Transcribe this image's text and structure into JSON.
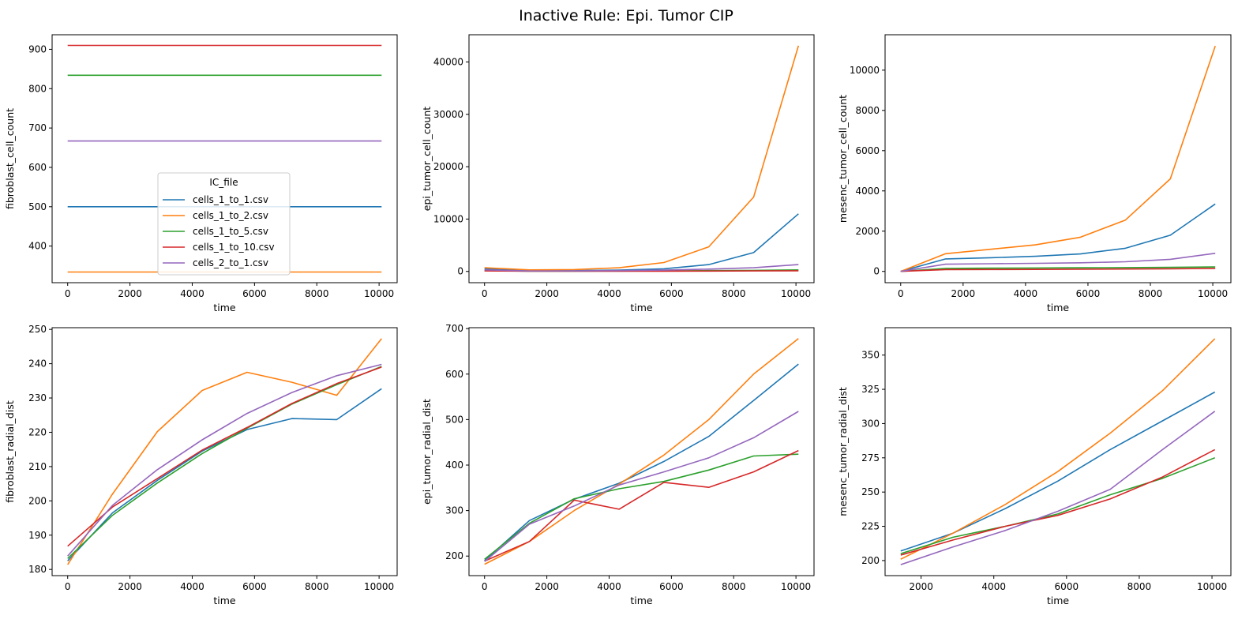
{
  "figure": {
    "title": "Inactive Rule: Epi. Tumor CIP"
  },
  "colors": {
    "cells_1_to_1.csv": "#1f77b4",
    "cells_1_to_2.csv": "#ff7f0e",
    "cells_1_to_5.csv": "#2ca02c",
    "cells_1_to_10.csv": "#d62728",
    "cells_2_to_1.csv": "#9467bd"
  },
  "legend": {
    "title": "IC_file",
    "placement": "lower center (first panel)",
    "entries": [
      "cells_1_to_1.csv",
      "cells_1_to_2.csv",
      "cells_1_to_5.csv",
      "cells_1_to_10.csv",
      "cells_2_to_1.csv"
    ]
  },
  "chart_data": [
    {
      "type": "line",
      "xlabel": "time",
      "ylabel": "fibroblast_cell_count",
      "xlim": [
        -500,
        10580
      ],
      "ylim": [
        307,
        937
      ],
      "xticks": [
        0,
        2000,
        4000,
        6000,
        8000,
        10000
      ],
      "yticks": [
        400,
        500,
        600,
        700,
        800,
        900
      ],
      "series": [
        {
          "name": "cells_1_to_1.csv",
          "x": [
            0,
            1440,
            2880,
            4320,
            5760,
            7200,
            8640,
            10080
          ],
          "y": [
            500,
            500,
            500,
            500,
            500,
            500,
            500,
            500
          ]
        },
        {
          "name": "cells_1_to_2.csv",
          "x": [
            0,
            1440,
            2880,
            4320,
            5760,
            7200,
            8640,
            10080
          ],
          "y": [
            334,
            334,
            334,
            334,
            334,
            334,
            334,
            334
          ]
        },
        {
          "name": "cells_1_to_5.csv",
          "x": [
            0,
            1440,
            2880,
            4320,
            5760,
            7200,
            8640,
            10080
          ],
          "y": [
            834,
            834,
            834,
            834,
            834,
            834,
            834,
            834
          ]
        },
        {
          "name": "cells_1_to_10.csv",
          "x": [
            0,
            1440,
            2880,
            4320,
            5760,
            7200,
            8640,
            10080
          ],
          "y": [
            910,
            910,
            910,
            910,
            910,
            910,
            910,
            910
          ]
        },
        {
          "name": "cells_2_to_1.csv",
          "x": [
            0,
            1440,
            2880,
            4320,
            5760,
            7200,
            8640,
            10080
          ],
          "y": [
            667,
            667,
            667,
            667,
            667,
            667,
            667,
            667
          ]
        }
      ]
    },
    {
      "type": "line",
      "xlabel": "time",
      "ylabel": "epi_tumor_cell_count",
      "xlim": [
        -500,
        10580
      ],
      "ylim": [
        -2150,
        45200
      ],
      "xticks": [
        0,
        2000,
        4000,
        6000,
        8000,
        10000
      ],
      "yticks": [
        0,
        10000,
        20000,
        30000,
        40000
      ],
      "series": [
        {
          "name": "cells_1_to_1.csv",
          "x": [
            0,
            1440,
            2880,
            4320,
            5760,
            7200,
            8640,
            10080
          ],
          "y": [
            500,
            100,
            150,
            250,
            500,
            1300,
            3600,
            11000
          ]
        },
        {
          "name": "cells_1_to_2.csv",
          "x": [
            0,
            1440,
            2880,
            4320,
            5760,
            7200,
            8640,
            10080
          ],
          "y": [
            700,
            300,
            350,
            700,
            1700,
            4700,
            14200,
            43100
          ]
        },
        {
          "name": "cells_1_to_5.csv",
          "x": [
            0,
            1440,
            2880,
            4320,
            5760,
            7200,
            8640,
            10080
          ],
          "y": [
            150,
            50,
            50,
            70,
            100,
            150,
            200,
            300
          ]
        },
        {
          "name": "cells_1_to_10.csv",
          "x": [
            0,
            1440,
            2880,
            4320,
            5760,
            7200,
            8640,
            10080
          ],
          "y": [
            100,
            30,
            30,
            40,
            50,
            70,
            90,
            130
          ]
        },
        {
          "name": "cells_2_to_1.csv",
          "x": [
            0,
            1440,
            2880,
            4320,
            5760,
            7200,
            8640,
            10080
          ],
          "y": [
            300,
            80,
            100,
            150,
            250,
            450,
            700,
            1300
          ]
        }
      ]
    },
    {
      "type": "line",
      "xlabel": "time",
      "ylabel": "mesenc_tumor_cell_count",
      "xlim": [
        -500,
        10580
      ],
      "ylim": [
        -560,
        11760
      ],
      "xticks": [
        0,
        2000,
        4000,
        6000,
        8000,
        10000
      ],
      "yticks": [
        0,
        2000,
        4000,
        6000,
        8000,
        10000
      ],
      "series": [
        {
          "name": "cells_1_to_1.csv",
          "x": [
            0,
            1440,
            2880,
            4320,
            5760,
            7200,
            8640,
            10080
          ],
          "y": [
            0,
            620,
            680,
            750,
            870,
            1150,
            1800,
            3350
          ]
        },
        {
          "name": "cells_1_to_2.csv",
          "x": [
            0,
            1440,
            2880,
            4320,
            5760,
            7200,
            8640,
            10080
          ],
          "y": [
            0,
            880,
            1100,
            1320,
            1700,
            2550,
            4600,
            11200
          ]
        },
        {
          "name": "cells_1_to_5.csv",
          "x": [
            0,
            1440,
            2880,
            4320,
            5760,
            7200,
            8640,
            10080
          ],
          "y": [
            0,
            150,
            160,
            170,
            180,
            190,
            200,
            220
          ]
        },
        {
          "name": "cells_1_to_10.csv",
          "x": [
            0,
            1440,
            2880,
            4320,
            5760,
            7200,
            8640,
            10080
          ],
          "y": [
            0,
            90,
            95,
            100,
            110,
            120,
            130,
            150
          ]
        },
        {
          "name": "cells_2_to_1.csv",
          "x": [
            0,
            1440,
            2880,
            4320,
            5760,
            7200,
            8640,
            10080
          ],
          "y": [
            0,
            360,
            380,
            400,
            430,
            480,
            600,
            900
          ]
        }
      ]
    },
    {
      "type": "line",
      "xlabel": "time",
      "ylabel": "fibroblast_radial_dist",
      "xlim": [
        -500,
        10580
      ],
      "ylim": [
        178.2,
        250.5
      ],
      "xticks": [
        0,
        2000,
        4000,
        6000,
        8000,
        10000
      ],
      "yticks": [
        180,
        190,
        200,
        210,
        220,
        230,
        240,
        250
      ],
      "series": [
        {
          "name": "cells_1_to_1.csv",
          "x": [
            0,
            1440,
            2880,
            4320,
            5760,
            7200,
            8640,
            10080
          ],
          "y": [
            182.5,
            196.5,
            206,
            214.5,
            220.8,
            224,
            223.7,
            232.7
          ]
        },
        {
          "name": "cells_1_to_2.csv",
          "x": [
            0,
            1440,
            2880,
            4320,
            5760,
            7200,
            8640,
            10080
          ],
          "y": [
            181.4,
            202,
            220.2,
            232.2,
            237.5,
            234.6,
            230.8,
            247.3
          ]
        },
        {
          "name": "cells_1_to_5.csv",
          "x": [
            0,
            1440,
            2880,
            4320,
            5760,
            7200,
            8640,
            10080
          ],
          "y": [
            183.2,
            195.8,
            205.2,
            213.8,
            221.2,
            228.2,
            233.9,
            239.2
          ]
        },
        {
          "name": "cells_1_to_10.csv",
          "x": [
            0,
            1440,
            2880,
            4320,
            5760,
            7200,
            8640,
            10080
          ],
          "y": [
            186.8,
            198.2,
            206.5,
            214.8,
            221.4,
            228.4,
            234.2,
            239
          ]
        },
        {
          "name": "cells_2_to_1.csv",
          "x": [
            0,
            1440,
            2880,
            4320,
            5760,
            7200,
            8640,
            10080
          ],
          "y": [
            183.9,
            198.7,
            209.1,
            217.8,
            225.5,
            231.6,
            236.5,
            239.8
          ]
        }
      ]
    },
    {
      "type": "line",
      "xlabel": "time",
      "ylabel": "epi_tumor_radial_dist",
      "xlim": [
        -500,
        10580
      ],
      "ylim": [
        157,
        702
      ],
      "xticks": [
        0,
        2000,
        4000,
        6000,
        8000,
        10000
      ],
      "yticks": [
        200,
        300,
        400,
        500,
        600,
        700
      ],
      "series": [
        {
          "name": "cells_1_to_1.csv",
          "x": [
            0,
            1440,
            2880,
            4320,
            5760,
            7200,
            8640,
            10080
          ],
          "y": [
            190,
            278,
            325,
            360,
            408,
            463,
            542,
            622
          ]
        },
        {
          "name": "cells_1_to_2.csv",
          "x": [
            0,
            1440,
            2880,
            4320,
            5760,
            7200,
            8640,
            10080
          ],
          "y": [
            182,
            232,
            300,
            358,
            422,
            500,
            600,
            678
          ]
        },
        {
          "name": "cells_1_to_5.csv",
          "x": [
            0,
            1440,
            2880,
            4320,
            5760,
            7200,
            8640,
            10080
          ],
          "y": [
            193,
            272,
            326,
            348,
            364,
            389,
            420,
            424
          ]
        },
        {
          "name": "cells_1_to_10.csv",
          "x": [
            0,
            1440,
            2880,
            4320,
            5760,
            7200,
            8640,
            10080
          ],
          "y": [
            189,
            232,
            323,
            303,
            362,
            351,
            385,
            432
          ]
        },
        {
          "name": "cells_2_to_1.csv",
          "x": [
            0,
            1440,
            2880,
            4320,
            5760,
            7200,
            8640,
            10080
          ],
          "y": [
            188,
            270,
            310,
            356,
            385,
            416,
            460,
            518
          ]
        }
      ]
    },
    {
      "type": "line",
      "xlabel": "time",
      "ylabel": "mesenc_tumor_radial_dist",
      "xlim": [
        1010,
        10520
      ],
      "ylim": [
        189,
        370
      ],
      "xticks": [
        2000,
        4000,
        6000,
        8000,
        10000
      ],
      "yticks": [
        200,
        225,
        250,
        275,
        300,
        325,
        350
      ],
      "series": [
        {
          "name": "cells_1_to_1.csv",
          "x": [
            1440,
            2880,
            4320,
            5760,
            7200,
            8640,
            10080
          ],
          "y": [
            207,
            220,
            238,
            258,
            281,
            302,
            323
          ]
        },
        {
          "name": "cells_1_to_2.csv",
          "x": [
            1440,
            2880,
            4320,
            5760,
            7200,
            8640,
            10080
          ],
          "y": [
            201,
            220,
            241,
            265,
            293,
            324,
            362
          ]
        },
        {
          "name": "cells_1_to_5.csv",
          "x": [
            1440,
            2880,
            4320,
            5760,
            7200,
            8640,
            10080
          ],
          "y": [
            205,
            217,
            225,
            234,
            248,
            260,
            275
          ]
        },
        {
          "name": "cells_1_to_10.csv",
          "x": [
            1440,
            2880,
            4320,
            5760,
            7200,
            8640,
            10080
          ],
          "y": [
            204,
            215,
            225,
            233,
            245,
            261,
            281
          ]
        },
        {
          "name": "cells_2_to_1.csv",
          "x": [
            1440,
            2880,
            4320,
            5760,
            7200,
            8640,
            10080
          ],
          "y": [
            197,
            210,
            222,
            236,
            252,
            281,
            309
          ]
        }
      ]
    }
  ]
}
